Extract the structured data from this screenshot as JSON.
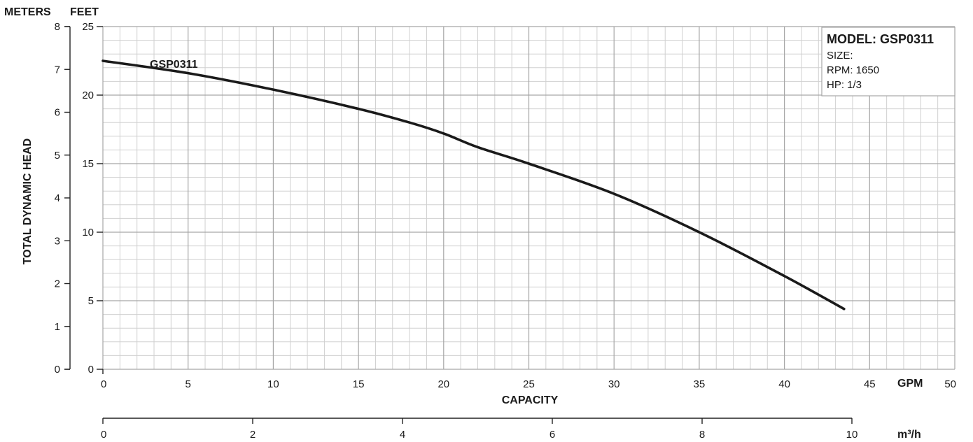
{
  "chart_data": {
    "type": "line",
    "header_left": "METERS",
    "header_right": "FEET",
    "ylabel": "TOTAL DYNAMIC HEAD",
    "xlabel": "CAPACITY",
    "x_unit": "GPM",
    "x2_unit": "m³/h",
    "xlim": [
      0,
      50
    ],
    "ylim_feet": [
      0,
      25
    ],
    "ylim_meters": [
      0,
      8
    ],
    "x2lim": [
      0,
      10
    ],
    "grid": true,
    "x_ticks": [
      "0",
      "5",
      "10",
      "15",
      "20",
      "25",
      "30",
      "35",
      "40",
      "45",
      "50"
    ],
    "feet_ticks": [
      "0",
      "5",
      "10",
      "15",
      "20",
      "25"
    ],
    "meter_ticks": [
      "0",
      "1",
      "2",
      "3",
      "4",
      "5",
      "6",
      "7",
      "8"
    ],
    "x2_ticks": [
      "0",
      "2",
      "4",
      "6",
      "8",
      "10"
    ],
    "legend": {
      "title": "MODEL: GSP0311",
      "lines": [
        "SIZE:",
        "RPM: 1650",
        "HP: 1/3"
      ],
      "placement": "top-right"
    },
    "series": [
      {
        "name": "GSP0311",
        "color": "#1a1a1a",
        "x": [
          0,
          5,
          10,
          15,
          18,
          20,
          22,
          25,
          30,
          35,
          40,
          43.5
        ],
        "y": [
          22.5,
          21.6,
          20.4,
          19.0,
          18.0,
          17.2,
          16.2,
          15.0,
          12.8,
          10.0,
          6.8,
          4.4
        ]
      }
    ]
  }
}
